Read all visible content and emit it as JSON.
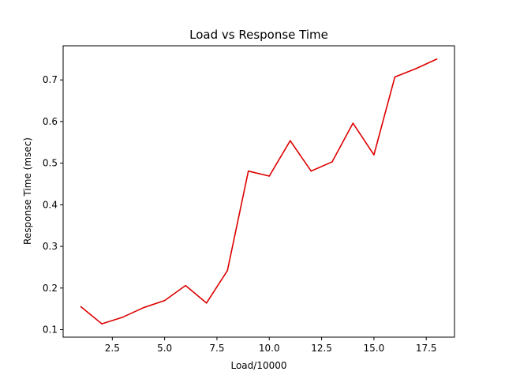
{
  "chart_data": {
    "type": "line",
    "title": "Load vs Response Time",
    "xlabel": "Load/10000",
    "ylabel": "Response Time (msec)",
    "xlim": [
      0.15,
      18.85
    ],
    "ylim": [
      0.082,
      0.782
    ],
    "xticks": [
      2.5,
      5.0,
      7.5,
      10.0,
      12.5,
      15.0,
      17.5
    ],
    "xtick_labels": [
      "2.5",
      "5.0",
      "7.5",
      "10.0",
      "12.5",
      "15.0",
      "17.5"
    ],
    "yticks": [
      0.1,
      0.2,
      0.3,
      0.4,
      0.5,
      0.6,
      0.7
    ],
    "ytick_labels": [
      "0.1",
      "0.2",
      "0.3",
      "0.4",
      "0.5",
      "0.6",
      "0.7"
    ],
    "grid": false,
    "series": [
      {
        "color": "#dd0000",
        "x": [
          1,
          2,
          3,
          4,
          5,
          6,
          7,
          8,
          9,
          10,
          11,
          12,
          13,
          14,
          15,
          16,
          17,
          18
        ],
        "y": [
          0.155,
          0.114,
          0.13,
          0.153,
          0.17,
          0.206,
          0.164,
          0.242,
          0.481,
          0.469,
          0.554,
          0.481,
          0.503,
          0.596,
          0.52,
          0.707,
          0.727,
          0.75
        ]
      }
    ]
  }
}
